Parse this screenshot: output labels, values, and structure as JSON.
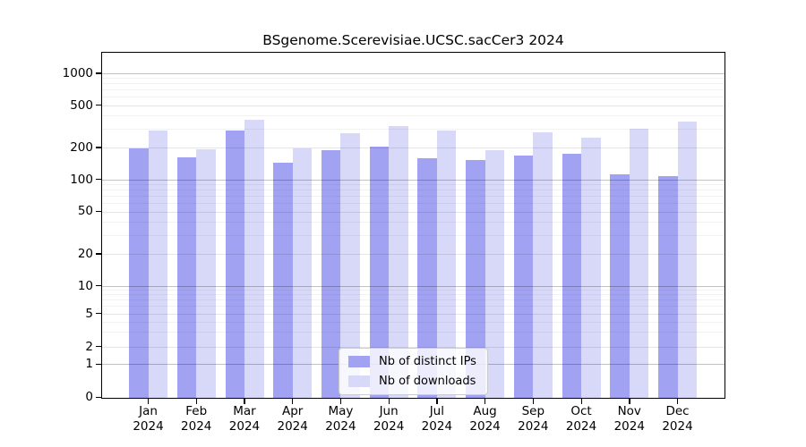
{
  "title": "BSgenome.Scerevisiae.UCSC.sacCer3 2024",
  "chart_data": {
    "type": "bar",
    "title": "BSgenome.Scerevisiae.UCSC.sacCer3 2024",
    "categories": [
      "Jan 2024",
      "Feb 2024",
      "Mar 2024",
      "Apr 2024",
      "May 2024",
      "Jun 2024",
      "Jul 2024",
      "Aug 2024",
      "Sep 2024",
      "Oct 2024",
      "Nov 2024",
      "Dec 2024"
    ],
    "series": [
      {
        "name": "Nb of distinct IPs",
        "color": "#a2a2f2",
        "values": [
          200,
          165,
          293,
          148,
          194,
          206,
          163,
          154,
          172,
          179,
          114,
          109
        ]
      },
      {
        "name": "Nb of downloads",
        "color": "#d8d8f8",
        "values": [
          297,
          197,
          370,
          200,
          279,
          324,
          296,
          191,
          281,
          254,
          306,
          359
        ]
      }
    ],
    "xlabel": "",
    "ylabel": "",
    "y_scale": "log (compressed below 10, zero baseline at bottom)",
    "y_ticks": [
      1000,
      500,
      200,
      100,
      50,
      20,
      10,
      5,
      2,
      1,
      0
    ],
    "ylim": [
      0,
      1500
    ],
    "grid": true,
    "legend_position": "bottom-center-inside"
  },
  "colors": {
    "ips_bar": "#a2a2f2",
    "downloads_bar": "#d8d8f8",
    "grid_major": "rgba(0,0,0,0.24)",
    "grid_sub": "rgba(0,0,0,0.10)",
    "grid_minor": "rgba(0,0,0,0.05)",
    "spine": "#000000",
    "text": "#000000",
    "legend_bg": "rgba(255,255,255,0.8)",
    "legend_border": "#cccccc"
  }
}
